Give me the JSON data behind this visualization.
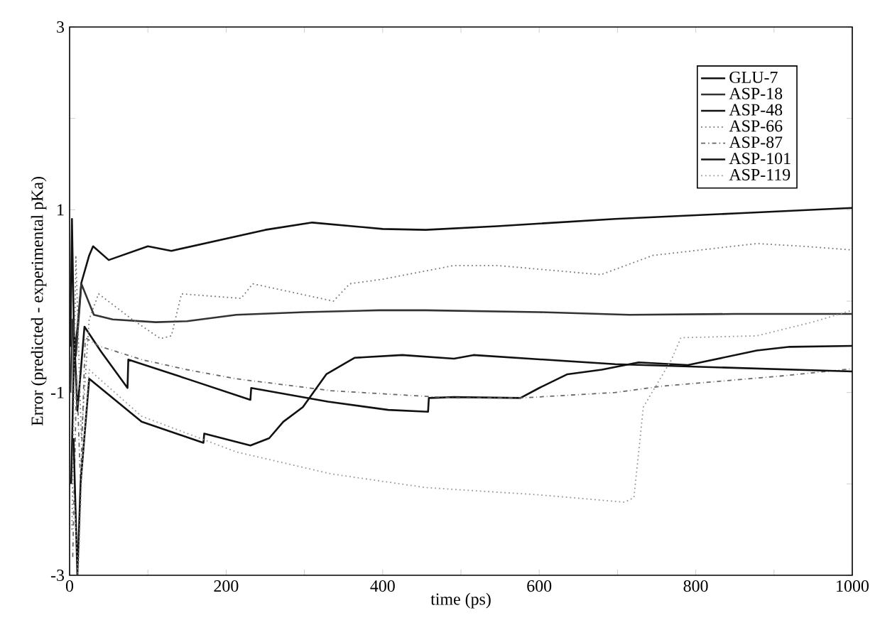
{
  "chart_data": {
    "type": "line",
    "xlabel": "time (ps)",
    "ylabel": "Error (predicted - experimental pKa)",
    "xlim": [
      0,
      1000
    ],
    "ylim": [
      -3,
      3
    ],
    "xticks": [
      0,
      {
        "value": 100,
        "label": null
      },
      200,
      {
        "value": 300,
        "label": null
      },
      400,
      {
        "value": 500,
        "label": null
      },
      600,
      {
        "value": 700,
        "label": null
      },
      800,
      {
        "value": 900,
        "label": null
      },
      1000
    ],
    "yticks": [
      -3,
      {
        "value": -2,
        "label": null
      },
      -1,
      {
        "value": 0,
        "label": null
      },
      1,
      {
        "value": 2,
        "label": null
      },
      3
    ],
    "grid": false,
    "legend": "top right",
    "marker": "none",
    "series": [
      {
        "name": "GLU-7",
        "color": "#111111",
        "line_style": "solid",
        "x": [
          1,
          3,
          6,
          10,
          15,
          25,
          30,
          50,
          100,
          130,
          250,
          310,
          400,
          455,
          546,
          697,
          850,
          1000
        ],
        "values": [
          -0.5,
          0.9,
          -0.6,
          -0.3,
          0.2,
          0.5,
          0.6,
          0.45,
          0.6,
          0.55,
          0.78,
          0.86,
          0.79,
          0.78,
          0.82,
          0.9,
          0.96,
          1.02
        ]
      },
      {
        "name": "ASP-18",
        "color": "#333333",
        "line_style": "solid",
        "x": [
          1,
          4,
          8,
          15,
          31,
          55,
          110,
          150,
          213,
          300,
          395,
          455,
          600,
          715,
          850,
          1000
        ],
        "values": [
          -1.0,
          -0.2,
          -0.6,
          0.19,
          -0.15,
          -0.2,
          -0.23,
          -0.22,
          -0.15,
          -0.12,
          -0.1,
          -0.1,
          -0.12,
          -0.15,
          -0.14,
          -0.14
        ]
      },
      {
        "name": "ASP-48",
        "color": "#111111",
        "line_style": "solid",
        "x": [
          2,
          6,
          10,
          19,
          40,
          74,
          75,
          150,
          231,
          232,
          330,
          407,
          458,
          459,
          491,
          576,
          600,
          636,
          680,
          727,
          790,
          878,
          920,
          1000
        ],
        "values": [
          -2.0,
          -0.4,
          -1.2,
          -0.28,
          -0.55,
          -0.95,
          -0.64,
          -0.85,
          -1.08,
          -0.95,
          -1.1,
          -1.19,
          -1.21,
          -1.06,
          -1.05,
          -1.06,
          -0.95,
          -0.8,
          -0.75,
          -0.67,
          -0.7,
          -0.54,
          -0.5,
          -0.49
        ]
      },
      {
        "name": "ASP-66",
        "color": "#777777",
        "line_style": "dotted",
        "x": [
          3,
          8,
          15,
          25,
          37,
          80,
          116,
          130,
          143,
          219,
          234,
          337,
          358,
          400,
          491,
          546,
          679,
          745,
          878,
          938,
          1000
        ],
        "values": [
          -2.5,
          0.5,
          -1.5,
          -0.2,
          0.08,
          -0.2,
          -0.41,
          -0.38,
          0.08,
          0.03,
          0.19,
          0.0,
          0.19,
          0.24,
          0.39,
          0.39,
          0.29,
          0.5,
          0.63,
          0.6,
          0.56
        ]
      },
      {
        "name": "ASP-87",
        "color": "#666666",
        "line_style": "dashdotted",
        "x": [
          4,
          9,
          14,
          20,
          37,
          92,
          150,
          213,
          334,
          491,
          576,
          697,
          757,
          908,
          1000
        ],
        "values": [
          -2.8,
          -0.8,
          -2.0,
          -0.4,
          -0.49,
          -0.64,
          -0.75,
          -0.85,
          -0.98,
          -1.06,
          -1.06,
          -1.0,
          -0.93,
          -0.82,
          -0.74
        ]
      },
      {
        "name": "ASP-101",
        "color": "#111111",
        "line_style": "solid",
        "x": [
          5,
          10,
          14,
          25,
          92,
          171,
          172,
          231,
          255,
          273,
          298,
          328,
          364,
          425,
          491,
          516,
          697,
          1000
        ],
        "values": [
          -1.5,
          -3.0,
          -2.0,
          -0.85,
          -1.32,
          -1.55,
          -1.45,
          -1.58,
          -1.5,
          -1.32,
          -1.16,
          -0.8,
          -0.62,
          -0.59,
          -0.63,
          -0.59,
          -0.69,
          -0.77
        ]
      },
      {
        "name": "ASP-119",
        "color": "#999999",
        "line_style": "dotted",
        "x": [
          6,
          11,
          16,
          25,
          92,
          213,
          334,
          455,
          600,
          709,
          721,
          733,
          769,
          781,
          878,
          949,
          1000
        ],
        "values": [
          -2.2,
          -3.0,
          -1.8,
          -0.75,
          -1.26,
          -1.65,
          -1.89,
          -2.04,
          -2.12,
          -2.2,
          -2.15,
          -1.16,
          -0.64,
          -0.4,
          -0.38,
          -0.23,
          -0.1
        ]
      }
    ]
  }
}
